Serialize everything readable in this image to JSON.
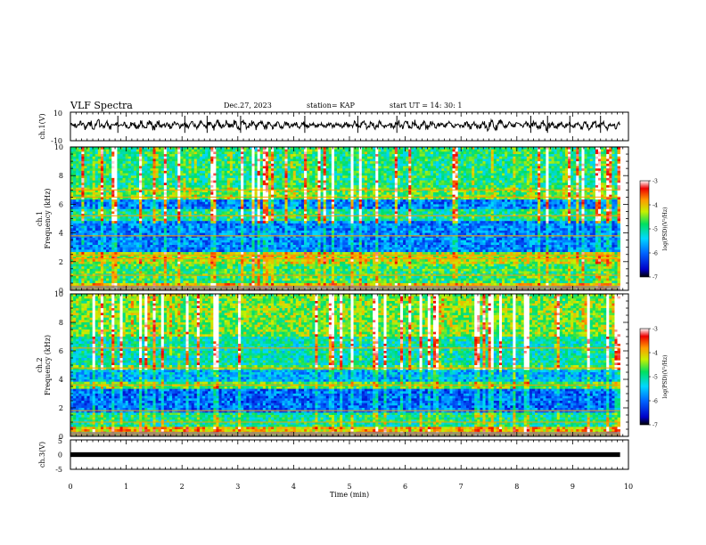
{
  "header": {
    "title": "VLF Spectra",
    "date": "Dec.27, 2023",
    "station": "station= KAP",
    "start": "start  UT =   14: 30: 1"
  },
  "chart_data": [
    {
      "type": "line",
      "panel": "ch1-waveform",
      "ylabel": "ch.1(V)",
      "ylim": [
        -10,
        10
      ],
      "yticks": [
        "10",
        "-10"
      ],
      "xlim": [
        0,
        10
      ],
      "note": "noisy waveform with amplitude roughly between -4 and 5 V over 0–9.85 min"
    },
    {
      "type": "heatmap",
      "panel": "ch1-spectrogram",
      "ylabel": "ch.1\nFrequency (kHz)",
      "ylim": [
        0,
        10
      ],
      "yticks": [
        "0",
        "2",
        "4",
        "6",
        "8",
        "10"
      ],
      "xlim": [
        0,
        10
      ],
      "data_extent_min": 9.85,
      "colorbar": {
        "label": "log(PSD)(V²/Hz)",
        "range": [
          -7,
          -3
        ],
        "ticks": [
          "-3",
          "-4",
          "-5",
          "-6",
          "-7"
        ]
      },
      "bands": [
        {
          "range_khz": [
            0.0,
            0.5
          ],
          "level": -4.0
        },
        {
          "range_khz": [
            0.5,
            1.8
          ],
          "level": -4.8
        },
        {
          "range_khz": [
            1.8,
            2.6
          ],
          "level": -4.3
        },
        {
          "range_khz": [
            2.6,
            4.8
          ],
          "level": -5.9
        },
        {
          "range_khz": [
            4.8,
            5.6
          ],
          "level": -5.0
        },
        {
          "range_khz": [
            5.6,
            6.3
          ],
          "level": -5.9
        },
        {
          "range_khz": [
            6.3,
            7.2
          ],
          "level": -4.6
        },
        {
          "range_khz": [
            7.2,
            10.0
          ],
          "level": -4.9
        }
      ],
      "lines_khz": [
        0.3,
        1.05,
        2.2,
        2.45,
        3.8,
        5.2,
        6.5,
        7.0
      ]
    },
    {
      "type": "heatmap",
      "panel": "ch2-spectrogram",
      "ylabel": "ch.2\nFrequency (kHz)",
      "ylim": [
        0,
        10
      ],
      "yticks": [
        "0",
        "2",
        "4",
        "6",
        "8",
        "10"
      ],
      "xlim": [
        0,
        10
      ],
      "data_extent_min": 9.85,
      "colorbar": {
        "label": "log(PSD)(V²/Hz)",
        "range": [
          -7,
          -3
        ],
        "ticks": [
          "-3",
          "-4",
          "-5",
          "-6",
          "-7"
        ]
      },
      "bands": [
        {
          "range_khz": [
            0.0,
            0.6
          ],
          "level": -4.0
        },
        {
          "range_khz": [
            0.6,
            1.7
          ],
          "level": -5.0
        },
        {
          "range_khz": [
            1.7,
            3.3
          ],
          "level": -6.0
        },
        {
          "range_khz": [
            3.3,
            3.9
          ],
          "level": -4.7
        },
        {
          "range_khz": [
            3.9,
            4.6
          ],
          "level": -5.6
        },
        {
          "range_khz": [
            4.6,
            5.0
          ],
          "level": -4.7
        },
        {
          "range_khz": [
            5.0,
            7.0
          ],
          "level": -5.1
        },
        {
          "range_khz": [
            7.0,
            10.0
          ],
          "level": -4.5
        }
      ],
      "lines_khz": [
        0.2,
        1.0,
        1.8,
        3.6,
        4.8,
        6.2
      ]
    },
    {
      "type": "line",
      "panel": "ch3-waveform",
      "ylabel": "ch.3(V)",
      "ylim": [
        -5,
        5
      ],
      "yticks": [
        "5",
        "0",
        "-5"
      ],
      "xlim": [
        0,
        10
      ],
      "note": "flat thick trace at about 0 V over 0–9.85 min"
    }
  ],
  "xaxis": {
    "label": "Time (min)",
    "ticks": [
      "0",
      "1",
      "2",
      "3",
      "4",
      "5",
      "6",
      "7",
      "8",
      "9",
      "10"
    ]
  },
  "colors": {
    "frame": "#000000",
    "trace": "#000000"
  }
}
